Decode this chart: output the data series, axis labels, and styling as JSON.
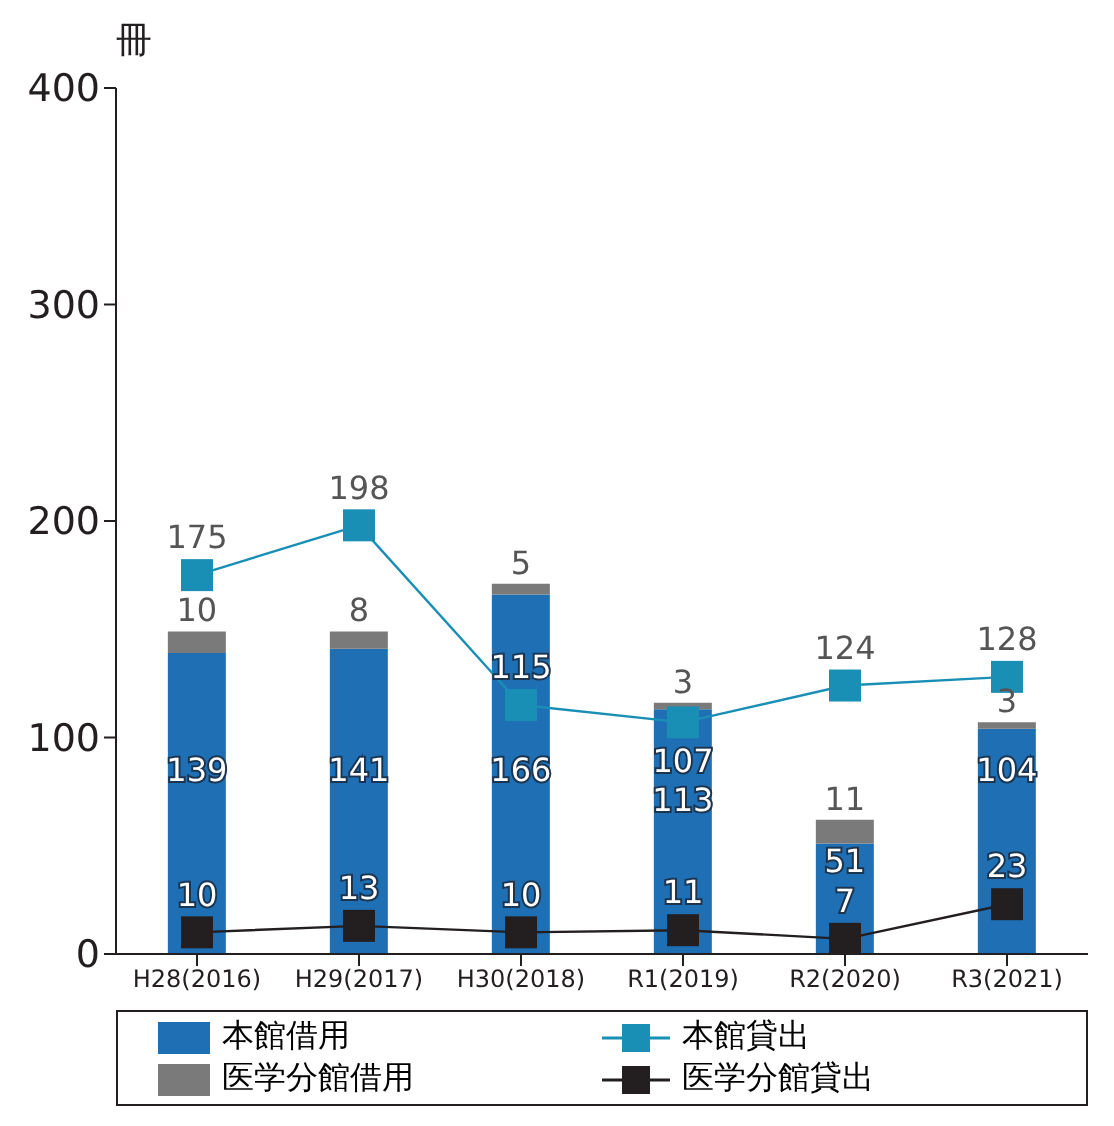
{
  "chart_data": {
    "type": "bar",
    "ylabel": "冊",
    "categories": [
      "H28(2016)",
      "H29(2017)",
      "H30(2018)",
      "R1(2019)",
      "R2(2020)",
      "R3(2021)"
    ],
    "stacked": true,
    "series": [
      {
        "name": "本館借用",
        "color": "#1f6fb5",
        "values": [
          139,
          141,
          166,
          113,
          51,
          104
        ]
      },
      {
        "name": "医学分館借用",
        "color": "#7a7a7a",
        "values": [
          10,
          8,
          5,
          3,
          11,
          3
        ]
      },
      {
        "name": "本館貸出",
        "type": "line",
        "color": "#1a8fb5",
        "values": [
          175,
          198,
          115,
          107,
          124,
          128
        ]
      },
      {
        "name": "医学分館貸出",
        "type": "line",
        "color": "#231f20",
        "values": [
          10,
          13,
          10,
          11,
          7,
          23
        ]
      }
    ],
    "ylim": [
      0,
      400
    ],
    "yticks": [
      0,
      100,
      200,
      300,
      400
    ],
    "data_labels": true,
    "legend": "bottom",
    "marker": "square",
    "grid": false
  }
}
